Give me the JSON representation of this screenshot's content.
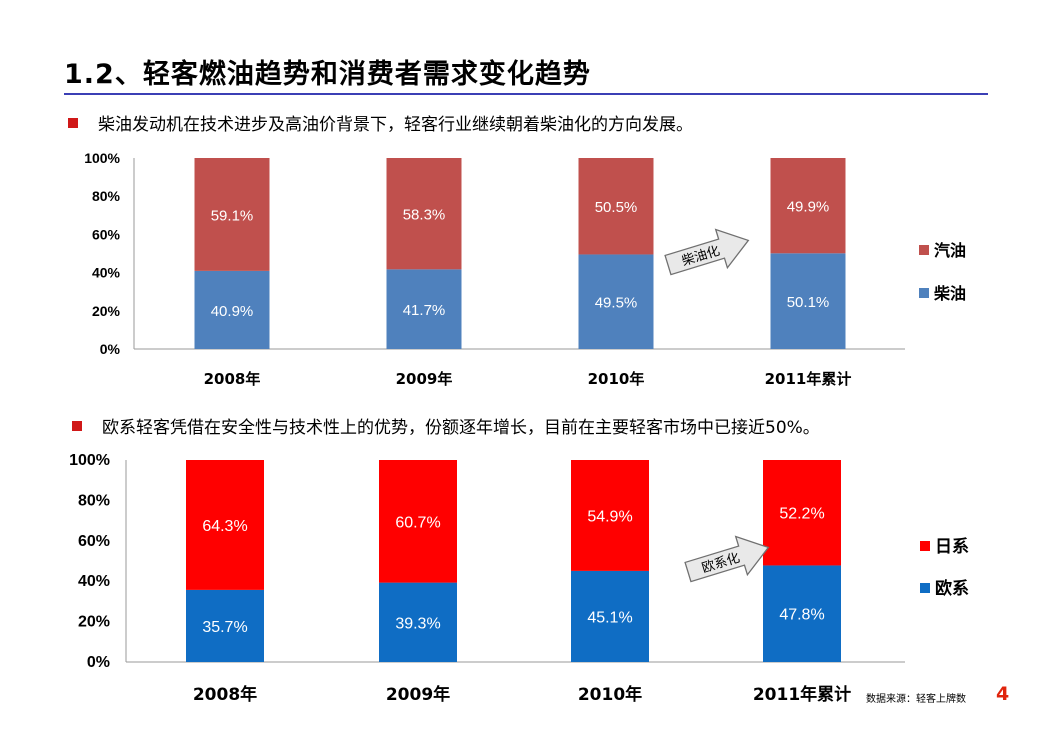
{
  "slide": {
    "title": "1.2、轻客燃油趋势和消费者需求变化趋势",
    "source": "数据来源：轻客上牌数",
    "page_number": "4"
  },
  "bullets": [
    "柴油发动机在技术进步及高油价背景下，轻客行业继续朝着柴油化的方向发展。",
    "欧系轻客凭借在安全性与技术性上的优势，份额逐年增长，目前在主要轻客市场中已接近50%。"
  ],
  "chart_data": [
    {
      "type": "bar",
      "stacked": true,
      "categories": [
        "2008年",
        "2009年",
        "2010年",
        "2011年累计"
      ],
      "series": [
        {
          "name": "柴油",
          "values": [
            40.9,
            41.7,
            49.5,
            50.1
          ],
          "labels": [
            "40.9%",
            "41.7%",
            "49.5%",
            "50.1%"
          ],
          "color": "#4f81bd"
        },
        {
          "name": "汽油",
          "values": [
            59.1,
            58.3,
            50.5,
            49.9
          ],
          "labels": [
            "59.1%",
            "58.3%",
            "50.5%",
            "49.9%"
          ],
          "color": "#c0504d"
        }
      ],
      "y_ticks": [
        "0%",
        "20%",
        "40%",
        "60%",
        "80%",
        "100%"
      ],
      "ylim": [
        0,
        100
      ],
      "legend": [
        "汽油",
        "柴油"
      ],
      "legend_position": "right",
      "annotation": {
        "text": "柴油化",
        "between": [
          "2010年",
          "2011年累计"
        ]
      },
      "grid": false
    },
    {
      "type": "bar",
      "stacked": true,
      "categories": [
        "2008年",
        "2009年",
        "2010年",
        "2011年累计"
      ],
      "series": [
        {
          "name": "欧系",
          "values": [
            35.7,
            39.3,
            45.1,
            47.8
          ],
          "labels": [
            "35.7%",
            "39.3%",
            "45.1%",
            "47.8%"
          ],
          "color": "#0f6dc4"
        },
        {
          "name": "日系",
          "values": [
            64.3,
            60.7,
            54.9,
            52.2
          ],
          "labels": [
            "64.3%",
            "60.7%",
            "54.9%",
            "52.2%"
          ],
          "color": "#ff0000"
        }
      ],
      "y_ticks": [
        "0%",
        "20%",
        "40%",
        "60%",
        "80%",
        "100%"
      ],
      "ylim": [
        0,
        100
      ],
      "legend": [
        "日系",
        "欧系"
      ],
      "legend_position": "right",
      "annotation": {
        "text": "欧系化",
        "between": [
          "2010年",
          "2011年累计"
        ]
      },
      "grid": false
    }
  ]
}
